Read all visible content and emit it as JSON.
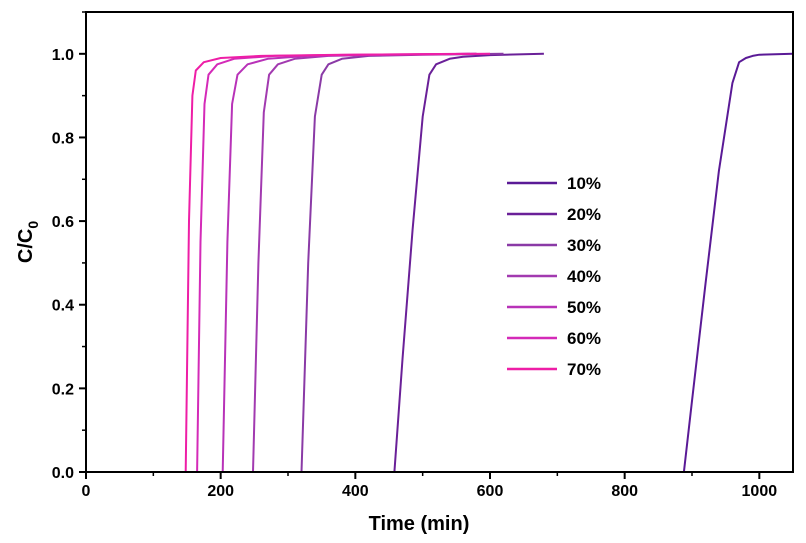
{
  "chart_data": {
    "type": "line",
    "title": "",
    "xlabel": "Time (min)",
    "ylabel_main": "C/C",
    "ylabel_sub": "0",
    "xlim": [
      0,
      1050
    ],
    "ylim": [
      0,
      1.1
    ],
    "xticks": [
      0,
      200,
      400,
      600,
      800,
      1000
    ],
    "yticks": [
      0.0,
      0.2,
      0.4,
      0.6,
      0.8,
      1.0
    ],
    "xtick_labels": [
      "0",
      "200",
      "400",
      "600",
      "800",
      "1000"
    ],
    "ytick_labels": [
      "0.0",
      "0.2",
      "0.4",
      "0.6",
      "0.8",
      "1.0"
    ],
    "grid": false,
    "legend_position": "center-right",
    "series": [
      {
        "name": "10%",
        "color": "#5a1a96",
        "x": [
          0,
          888,
          900,
          920,
          940,
          960,
          970,
          980,
          990,
          1000,
          1050
        ],
        "y": [
          0,
          0,
          0.17,
          0.45,
          0.72,
          0.93,
          0.98,
          0.99,
          0.995,
          0.998,
          1.0
        ]
      },
      {
        "name": "20%",
        "color": "#6a2098",
        "x": [
          0,
          458,
          470,
          485,
          500,
          510,
          520,
          540,
          560,
          600,
          680
        ],
        "y": [
          0,
          0,
          0.27,
          0.58,
          0.85,
          0.95,
          0.975,
          0.988,
          0.993,
          0.997,
          1.0
        ]
      },
      {
        "name": "30%",
        "color": "#8a3aa6",
        "x": [
          0,
          320,
          330,
          340,
          350,
          360,
          380,
          420,
          500,
          620
        ],
        "y": [
          0,
          0,
          0.5,
          0.85,
          0.95,
          0.975,
          0.988,
          0.995,
          0.998,
          1.0
        ]
      },
      {
        "name": "40%",
        "color": "#a23ab0",
        "x": [
          0,
          248,
          256,
          264,
          272,
          285,
          310,
          360,
          450,
          580
        ],
        "y": [
          0,
          0,
          0.5,
          0.86,
          0.95,
          0.975,
          0.988,
          0.995,
          0.998,
          1.0
        ]
      },
      {
        "name": "50%",
        "color": "#b832b8",
        "x": [
          0,
          203,
          210,
          217,
          225,
          240,
          270,
          330,
          450,
          580
        ],
        "y": [
          0,
          0,
          0.55,
          0.88,
          0.95,
          0.975,
          0.988,
          0.995,
          0.998,
          1.0
        ]
      },
      {
        "name": "60%",
        "color": "#d42ab8",
        "x": [
          0,
          165,
          170,
          176,
          182,
          195,
          220,
          280,
          400,
          570
        ],
        "y": [
          0,
          0,
          0.55,
          0.88,
          0.95,
          0.975,
          0.988,
          0.995,
          0.998,
          1.0
        ]
      },
      {
        "name": "70%",
        "color": "#ee1ea6",
        "x": [
          0,
          148,
          153,
          158,
          163,
          175,
          200,
          260,
          380,
          600
        ],
        "y": [
          0,
          0,
          0.6,
          0.9,
          0.96,
          0.98,
          0.99,
          0.995,
          0.998,
          1.0
        ]
      }
    ]
  }
}
